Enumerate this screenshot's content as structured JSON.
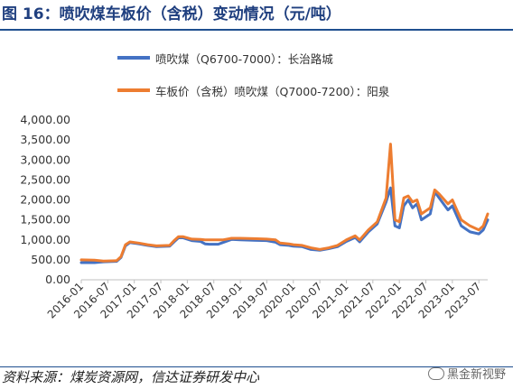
{
  "figure": {
    "title": "图 16：喷吹煤车板价（含税）变动情况（元/吨）",
    "source": "资料来源：煤炭资源网，信达证券研发中心",
    "watermark": "黑金新视野"
  },
  "chart_data": {
    "type": "line",
    "yticks": [
      "0.00",
      "500.00",
      "1,000.00",
      "1,500.00",
      "2,000.00",
      "2,500.00",
      "3,000.00",
      "3,500.00",
      "4,000.00"
    ],
    "ylim": [
      0,
      4000
    ],
    "xticks": [
      "2016-01",
      "2016-07",
      "2017-01",
      "2017-07",
      "2018-01",
      "2018-07",
      "2019-01",
      "2019-07",
      "2020-01",
      "2020-07",
      "2021-01",
      "2021-07",
      "2022-01",
      "2022-07",
      "2023-01",
      "2023-07"
    ],
    "xlim": [
      "2016-01",
      "2023-09"
    ],
    "grid": false,
    "legend_position": "top",
    "series": [
      {
        "name": "喷吹煤（Q6700-7000）：长治路城",
        "color": "#4472c4",
        "points": [
          [
            "2016-01",
            430
          ],
          [
            "2016-04",
            430
          ],
          [
            "2016-06",
            450
          ],
          [
            "2016-09",
            460
          ],
          [
            "2016-10",
            560
          ],
          [
            "2016-11",
            850
          ],
          [
            "2016-12",
            930
          ],
          [
            "2017-02",
            900
          ],
          [
            "2017-04",
            860
          ],
          [
            "2017-06",
            830
          ],
          [
            "2017-09",
            840
          ],
          [
            "2017-10",
            950
          ],
          [
            "2017-11",
            1050
          ],
          [
            "2017-12",
            1050
          ],
          [
            "2018-02",
            980
          ],
          [
            "2018-04",
            960
          ],
          [
            "2018-05",
            900
          ],
          [
            "2018-06",
            890
          ],
          [
            "2018-08",
            890
          ],
          [
            "2018-09",
            930
          ],
          [
            "2018-11",
            1010
          ],
          [
            "2019-01",
            1000
          ],
          [
            "2019-04",
            990
          ],
          [
            "2019-07",
            980
          ],
          [
            "2019-09",
            940
          ],
          [
            "2019-10",
            880
          ],
          [
            "2019-12",
            860
          ],
          [
            "2020-01",
            840
          ],
          [
            "2020-03",
            830
          ],
          [
            "2020-05",
            760
          ],
          [
            "2020-07",
            740
          ],
          [
            "2020-09",
            780
          ],
          [
            "2020-11",
            830
          ],
          [
            "2021-01",
            960
          ],
          [
            "2021-03",
            1060
          ],
          [
            "2021-04",
            950
          ],
          [
            "2021-06",
            1200
          ],
          [
            "2021-08",
            1400
          ],
          [
            "2021-10",
            1950
          ],
          [
            "2021-11",
            2300
          ],
          [
            "2021-12",
            1350
          ],
          [
            "2022-01",
            1300
          ],
          [
            "2022-02",
            1850
          ],
          [
            "2022-03",
            2000
          ],
          [
            "2022-04",
            1800
          ],
          [
            "2022-05",
            1900
          ],
          [
            "2022-06",
            1500
          ],
          [
            "2022-08",
            1650
          ],
          [
            "2022-09",
            2200
          ],
          [
            "2022-10",
            2050
          ],
          [
            "2022-12",
            1750
          ],
          [
            "2023-01",
            1850
          ],
          [
            "2023-03",
            1350
          ],
          [
            "2023-05",
            1200
          ],
          [
            "2023-07",
            1150
          ],
          [
            "2023-08",
            1250
          ],
          [
            "2023-09",
            1500
          ]
        ]
      },
      {
        "name": "车板价（含税）喷吹煤（Q7000-7200）：阳泉",
        "color": "#ed7d31",
        "points": [
          [
            "2016-01",
            500
          ],
          [
            "2016-04",
            490
          ],
          [
            "2016-06",
            470
          ],
          [
            "2016-09",
            480
          ],
          [
            "2016-10",
            580
          ],
          [
            "2016-11",
            880
          ],
          [
            "2016-12",
            950
          ],
          [
            "2017-02",
            920
          ],
          [
            "2017-04",
            880
          ],
          [
            "2017-06",
            850
          ],
          [
            "2017-09",
            860
          ],
          [
            "2017-10",
            980
          ],
          [
            "2017-11",
            1080
          ],
          [
            "2017-12",
            1080
          ],
          [
            "2018-02",
            1020
          ],
          [
            "2018-04",
            1010
          ],
          [
            "2018-05",
            1000
          ],
          [
            "2018-06",
            1000
          ],
          [
            "2018-08",
            1000
          ],
          [
            "2018-09",
            1000
          ],
          [
            "2018-11",
            1040
          ],
          [
            "2019-01",
            1040
          ],
          [
            "2019-04",
            1030
          ],
          [
            "2019-07",
            1020
          ],
          [
            "2019-09",
            1000
          ],
          [
            "2019-10",
            920
          ],
          [
            "2019-12",
            900
          ],
          [
            "2020-01",
            880
          ],
          [
            "2020-03",
            860
          ],
          [
            "2020-05",
            800
          ],
          [
            "2020-07",
            760
          ],
          [
            "2020-09",
            800
          ],
          [
            "2020-11",
            860
          ],
          [
            "2021-01",
            1000
          ],
          [
            "2021-03",
            1100
          ],
          [
            "2021-04",
            1000
          ],
          [
            "2021-06",
            1250
          ],
          [
            "2021-08",
            1450
          ],
          [
            "2021-10",
            2050
          ],
          [
            "2021-11",
            3400
          ],
          [
            "2021-12",
            1500
          ],
          [
            "2022-01",
            1450
          ],
          [
            "2022-02",
            2050
          ],
          [
            "2022-03",
            2100
          ],
          [
            "2022-04",
            1950
          ],
          [
            "2022-05",
            2000
          ],
          [
            "2022-06",
            1650
          ],
          [
            "2022-08",
            1800
          ],
          [
            "2022-09",
            2250
          ],
          [
            "2022-10",
            2150
          ],
          [
            "2022-12",
            1900
          ],
          [
            "2023-01",
            2000
          ],
          [
            "2023-03",
            1500
          ],
          [
            "2023-05",
            1350
          ],
          [
            "2023-07",
            1250
          ],
          [
            "2023-08",
            1350
          ],
          [
            "2023-09",
            1650
          ]
        ]
      }
    ]
  }
}
